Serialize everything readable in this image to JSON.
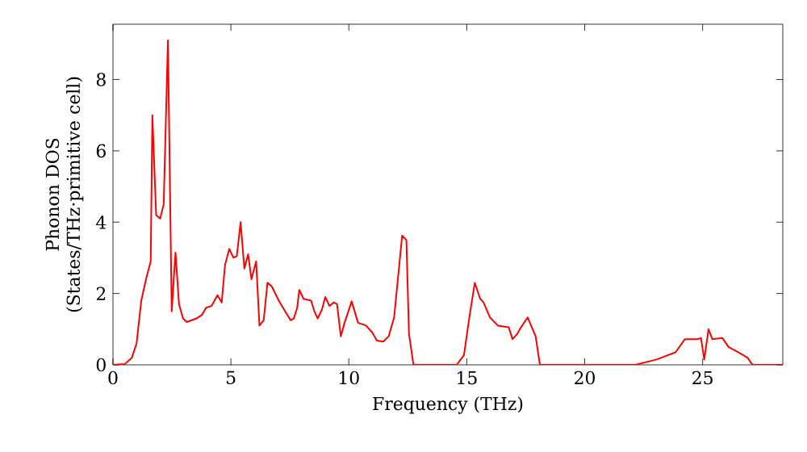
{
  "chart_data": {
    "type": "line",
    "xlabel": "Frequency (THz)",
    "ylabel": "Phonon DOS (States/THz·primitive cell)",
    "xlim": [
      0,
      28.4
    ],
    "ylim": [
      0,
      9.55
    ],
    "xticks": [
      0,
      5,
      10,
      15,
      20,
      25
    ],
    "yticks": [
      0,
      2,
      4,
      6,
      8
    ],
    "grid": false,
    "marker": "none",
    "line_style": "solid",
    "series": [
      {
        "color": "#ff0000",
        "x": [
          0,
          0.5,
          0.8,
          1.0,
          1.2,
          1.4,
          1.6,
          1.67,
          1.83,
          2.0,
          2.15,
          2.33,
          2.49,
          2.65,
          2.8,
          2.97,
          3.13,
          3.54,
          3.77,
          3.95,
          4.18,
          4.43,
          4.61,
          4.75,
          4.93,
          5.11,
          5.25,
          5.41,
          5.57,
          5.73,
          5.87,
          6.07,
          6.21,
          6.39,
          6.55,
          6.73,
          7.03,
          7.3,
          7.53,
          7.67,
          7.81,
          7.9,
          8.08,
          8.4,
          8.54,
          8.68,
          8.86,
          9.0,
          9.18,
          9.36,
          9.5,
          9.66,
          9.82,
          10.12,
          10.39,
          10.73,
          11.0,
          11.19,
          11.46,
          11.69,
          11.92,
          12.26,
          12.44,
          12.55,
          12.74,
          14.57,
          14.88,
          15.11,
          15.34,
          15.57,
          15.71,
          15.98,
          16.32,
          16.78,
          16.94,
          17.12,
          17.3,
          17.58,
          17.92,
          18.1,
          22.15,
          23.05,
          23.85,
          24.25,
          24.77,
          24.93,
          25.07,
          25.25,
          25.41,
          25.84,
          26.1,
          26.6,
          26.9,
          27.12,
          28.4
        ],
        "values": [
          0,
          0.02,
          0.2,
          0.6,
          1.8,
          2.4,
          2.9,
          7.0,
          4.2,
          4.1,
          4.5,
          9.1,
          1.5,
          3.15,
          1.7,
          1.3,
          1.2,
          1.3,
          1.4,
          1.6,
          1.65,
          1.95,
          1.75,
          2.8,
          3.25,
          3.0,
          3.05,
          4.0,
          2.7,
          3.1,
          2.4,
          2.9,
          1.1,
          1.25,
          2.3,
          2.2,
          1.8,
          1.5,
          1.25,
          1.3,
          1.6,
          2.1,
          1.85,
          1.8,
          1.5,
          1.3,
          1.55,
          1.9,
          1.65,
          1.75,
          1.7,
          0.8,
          1.18,
          1.78,
          1.18,
          1.1,
          0.9,
          0.68,
          0.65,
          0.8,
          1.33,
          3.62,
          3.5,
          0.87,
          0,
          0,
          0.27,
          1.33,
          2.3,
          1.85,
          1.75,
          1.33,
          1.1,
          1.05,
          0.72,
          0.85,
          1.05,
          1.33,
          0.8,
          0,
          0,
          0.15,
          0.35,
          0.72,
          0.72,
          0.75,
          0.15,
          1.0,
          0.72,
          0.75,
          0.5,
          0.32,
          0.2,
          0,
          0
        ]
      }
    ]
  }
}
